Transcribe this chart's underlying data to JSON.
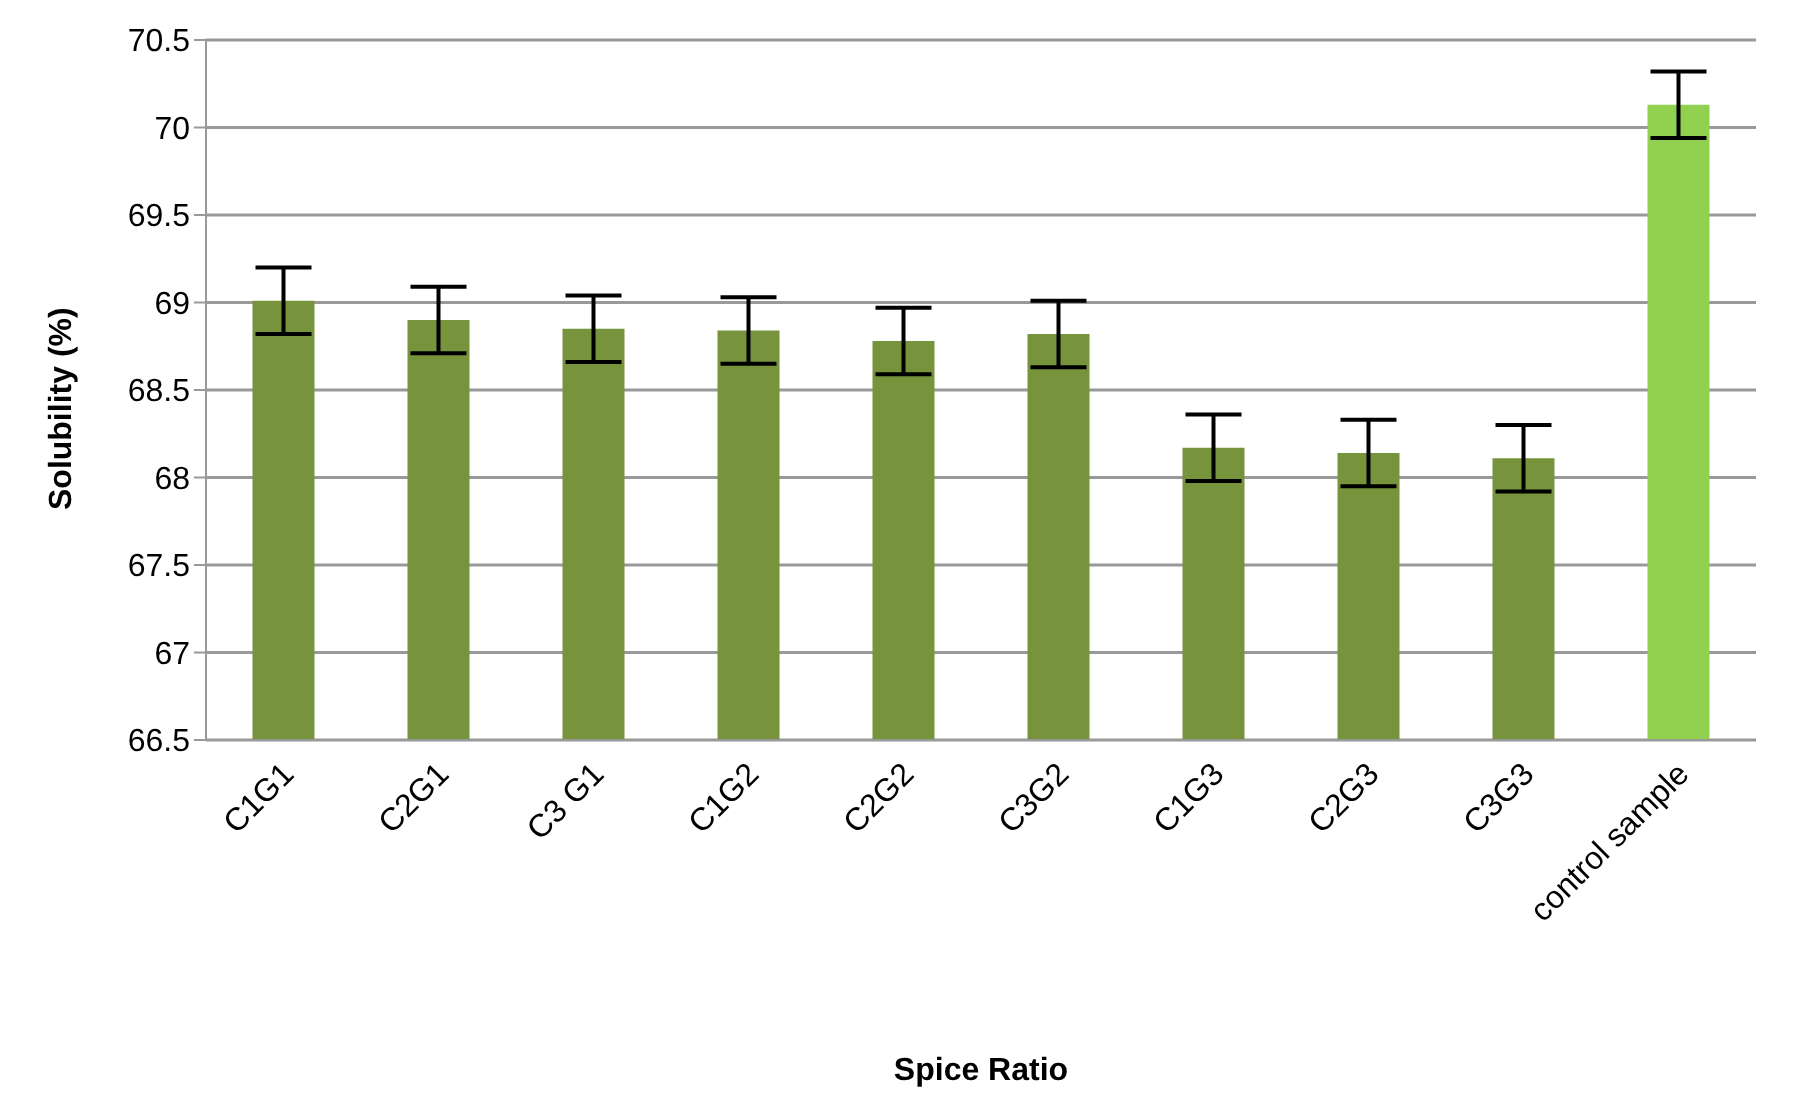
{
  "chart_data": {
    "type": "bar",
    "xlabel": "Spice Ratio",
    "ylabel": "Solubility (%)",
    "categories": [
      "C1G1",
      "C2G1",
      "C3 G1",
      "C1G2",
      "C2G2",
      "C3G2",
      "C1G3",
      "C2G3",
      "C3G3",
      "control sample"
    ],
    "values": [
      69.01,
      68.9,
      68.85,
      68.84,
      68.78,
      68.82,
      68.17,
      68.14,
      68.11,
      70.13
    ],
    "colors": [
      "#77933c",
      "#77933c",
      "#77933c",
      "#77933c",
      "#77933c",
      "#77933c",
      "#77933c",
      "#77933c",
      "#77933c",
      "#92d050"
    ],
    "errors": [
      0.19,
      0.19,
      0.19,
      0.19,
      0.19,
      0.19,
      0.19,
      0.19,
      0.19,
      0.19
    ],
    "ylim": [
      66.5,
      70.5
    ],
    "yticks": [
      66.5,
      67,
      67.5,
      68,
      68.5,
      69,
      69.5,
      70,
      70.5
    ],
    "grid": "y",
    "legend": false
  }
}
